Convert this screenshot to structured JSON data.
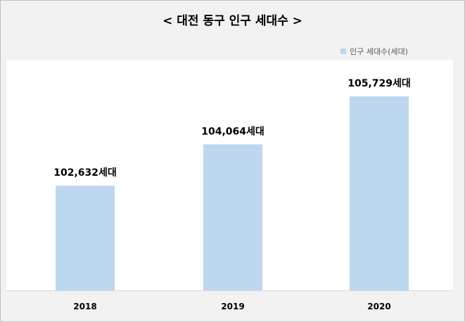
{
  "chart_data": {
    "type": "bar",
    "title": "< 대전 동구 인구 세대수 >",
    "categories": [
      "2018",
      "2019",
      "2020"
    ],
    "series": [
      {
        "name": "인구 세대수(세대)",
        "values": [
          102632,
          104064,
          105729
        ],
        "color": "#bdd7ee"
      }
    ],
    "data_labels": [
      "102,632세대",
      "104,064세대",
      "105,729세대"
    ],
    "ylim": [
      99000,
      107000
    ],
    "xlabel": "",
    "ylabel": "",
    "grid": false,
    "legend_position": "top-right"
  }
}
